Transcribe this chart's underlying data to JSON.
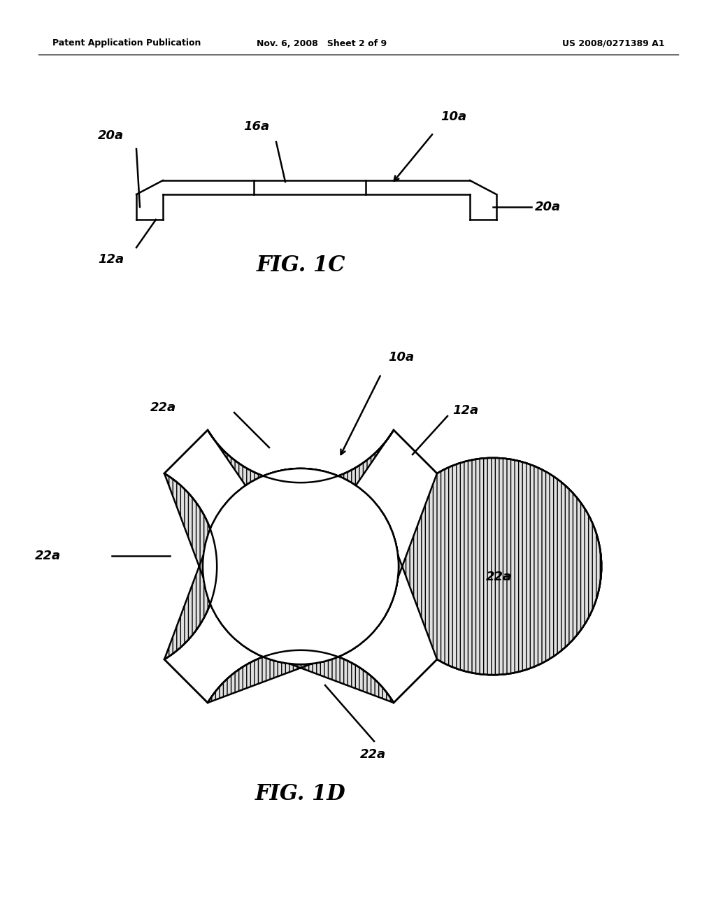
{
  "header_left": "Patent Application Publication",
  "header_mid": "Nov. 6, 2008   Sheet 2 of 9",
  "header_right": "US 2008/0271389 A1",
  "fig1c_caption": "FIG. 1C",
  "fig1d_caption": "FIG. 1D",
  "label_10a_1c": "10a",
  "label_16a_1c": "16a",
  "label_20a_left_1c": "20a",
  "label_20a_right_1c": "20a",
  "label_12a_1c": "12a",
  "label_10a_1d": "10a",
  "label_22a_top": "22a",
  "label_22a_right": "22a",
  "label_22a_left": "22a",
  "label_22a_bottom": "22a",
  "label_12a_1d": "12a",
  "bg_color": "#ffffff",
  "line_color": "#000000"
}
